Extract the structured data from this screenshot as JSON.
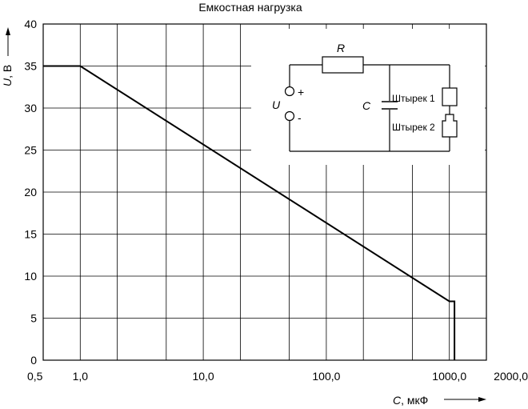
{
  "chart_data": {
    "type": "line",
    "title": "Емкостная нагрузка",
    "xlabel_symbol": "C",
    "xlabel_unit": ", мкФ",
    "ylabel_symbol": "U",
    "ylabel_unit": ", В",
    "x_scale": "log",
    "xlim": [
      0.5,
      2000
    ],
    "ylim": [
      0,
      40
    ],
    "x_ticks": [
      {
        "value": 0.5,
        "label": "0,5"
      },
      {
        "value": 1,
        "label": "1,0"
      },
      {
        "value": 10,
        "label": "10,0"
      },
      {
        "value": 100,
        "label": "100,0"
      },
      {
        "value": 1000,
        "label": "1000,0"
      },
      {
        "value": 2000,
        "label": "2000,0"
      }
    ],
    "y_ticks": [
      {
        "value": 0,
        "label": "0"
      },
      {
        "value": 5,
        "label": "5"
      },
      {
        "value": 10,
        "label": "10"
      },
      {
        "value": 15,
        "label": "15"
      },
      {
        "value": 20,
        "label": "20"
      },
      {
        "value": 25,
        "label": "25"
      },
      {
        "value": 30,
        "label": "30"
      },
      {
        "value": 35,
        "label": "35"
      },
      {
        "value": 40,
        "label": "40"
      }
    ],
    "grid": true,
    "series": [
      {
        "x": [
          0.5,
          1.0,
          1000,
          1100,
          1100
        ],
        "y": [
          35,
          35,
          7,
          7,
          0
        ]
      }
    ]
  },
  "inset": {
    "label_r": "R",
    "label_u": "U",
    "label_c": "C",
    "label_plus": "+",
    "label_minus": "-",
    "label_pin1": "Штырек 1",
    "label_pin2": "Штырек 2"
  }
}
